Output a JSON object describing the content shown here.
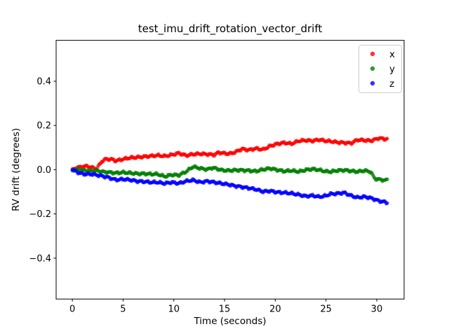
{
  "figure": {
    "background": "#ffffff"
  },
  "chart_data": {
    "type": "scatter",
    "title": "test_imu_drift_rotation_vector_drift",
    "xlabel": "Time (seconds)",
    "ylabel": "RV drift (degrees)",
    "xlim": [
      -1.6,
      32.7
    ],
    "ylim": [
      -0.585,
      0.585
    ],
    "xticks": [
      0,
      5,
      10,
      15,
      20,
      25,
      30
    ],
    "yticks": [
      -0.4,
      -0.2,
      0.0,
      0.2,
      0.4
    ],
    "grid": false,
    "legend_position": "upper right",
    "marker": {
      "radius_px": 2.6,
      "opacity": 0.65,
      "step_seconds": 0.08,
      "noise_amplitude": 0.0035
    },
    "series": [
      {
        "name": "x",
        "color": "#ff0000",
        "points": [
          [
            0,
            0.0
          ],
          [
            0.4,
            0.009
          ],
          [
            0.9,
            0.013
          ],
          [
            1.4,
            0.016
          ],
          [
            1.9,
            0.01
          ],
          [
            2.4,
            0.004
          ],
          [
            2.9,
            0.038
          ],
          [
            3.3,
            0.048
          ],
          [
            3.9,
            0.047
          ],
          [
            4.3,
            0.04
          ],
          [
            5,
            0.048
          ],
          [
            5.7,
            0.054
          ],
          [
            6.4,
            0.056
          ],
          [
            7.1,
            0.059
          ],
          [
            7.8,
            0.062
          ],
          [
            8.4,
            0.065
          ],
          [
            9.1,
            0.061
          ],
          [
            9.8,
            0.067
          ],
          [
            10.5,
            0.075
          ],
          [
            11.2,
            0.064
          ],
          [
            11.9,
            0.07
          ],
          [
            12.6,
            0.072
          ],
          [
            13.3,
            0.07
          ],
          [
            14,
            0.067
          ],
          [
            14.4,
            0.078
          ],
          [
            15,
            0.074
          ],
          [
            15.5,
            0.072
          ],
          [
            16.1,
            0.08
          ],
          [
            16.7,
            0.094
          ],
          [
            17.4,
            0.089
          ],
          [
            18.1,
            0.096
          ],
          [
            18.8,
            0.091
          ],
          [
            19.5,
            0.107
          ],
          [
            20.2,
            0.117
          ],
          [
            20.9,
            0.122
          ],
          [
            21.6,
            0.117
          ],
          [
            22.3,
            0.13
          ],
          [
            23,
            0.133
          ],
          [
            23.7,
            0.13
          ],
          [
            24.3,
            0.136
          ],
          [
            25,
            0.13
          ],
          [
            25.5,
            0.128
          ],
          [
            26.1,
            0.124
          ],
          [
            26.8,
            0.122
          ],
          [
            27.5,
            0.12
          ],
          [
            28.1,
            0.135
          ],
          [
            28.8,
            0.133
          ],
          [
            29.5,
            0.131
          ],
          [
            30.2,
            0.143
          ],
          [
            30.9,
            0.138
          ],
          [
            31.1,
            0.14
          ]
        ]
      },
      {
        "name": "y",
        "color": "#008000",
        "points": [
          [
            0,
            0.0
          ],
          [
            0.4,
            0.001
          ],
          [
            0.9,
            -0.001
          ],
          [
            1.4,
            -0.004
          ],
          [
            1.9,
            -0.006
          ],
          [
            2.4,
            -0.004
          ],
          [
            2.9,
            -0.009
          ],
          [
            3.6,
            -0.012
          ],
          [
            4.3,
            -0.015
          ],
          [
            5,
            -0.012
          ],
          [
            5.7,
            -0.015
          ],
          [
            6.4,
            -0.018
          ],
          [
            7.1,
            -0.018
          ],
          [
            7.8,
            -0.02
          ],
          [
            8.4,
            -0.02
          ],
          [
            9.1,
            -0.031
          ],
          [
            9.8,
            -0.023
          ],
          [
            10.5,
            -0.025
          ],
          [
            11.2,
            -0.009
          ],
          [
            11.9,
            0.014
          ],
          [
            12.6,
            0.006
          ],
          [
            13.3,
            0.001
          ],
          [
            13.8,
            0.009
          ],
          [
            14.2,
            0.005
          ],
          [
            14.7,
            -0.002
          ],
          [
            15.4,
            -0.004
          ],
          [
            16,
            -0.002
          ],
          [
            16.7,
            -0.002
          ],
          [
            17.4,
            -0.004
          ],
          [
            18.1,
            -0.007
          ],
          [
            18.8,
            0.001
          ],
          [
            19.5,
            0.006
          ],
          [
            20.2,
            -0.001
          ],
          [
            20.9,
            -0.007
          ],
          [
            21.6,
            -0.004
          ],
          [
            22.3,
            -0.009
          ],
          [
            23,
            -0.001
          ],
          [
            23.7,
            0.003
          ],
          [
            24.3,
            -0.001
          ],
          [
            25,
            -0.008
          ],
          [
            25.5,
            -0.009
          ],
          [
            26.1,
            -0.004
          ],
          [
            26.8,
            -0.002
          ],
          [
            27.5,
            -0.006
          ],
          [
            28.1,
            -0.009
          ],
          [
            28.8,
            -0.004
          ],
          [
            29.4,
            -0.009
          ],
          [
            29.8,
            -0.04
          ],
          [
            30.2,
            -0.044
          ],
          [
            30.9,
            -0.048
          ],
          [
            31.1,
            -0.046
          ]
        ]
      },
      {
        "name": "z",
        "color": "#0000ff",
        "points": [
          [
            0,
            0.0
          ],
          [
            0.2,
            -0.004
          ],
          [
            0.7,
            -0.015
          ],
          [
            1.2,
            -0.02
          ],
          [
            1.9,
            -0.02
          ],
          [
            2.4,
            -0.024
          ],
          [
            2.9,
            -0.028
          ],
          [
            3.6,
            -0.036
          ],
          [
            4.3,
            -0.046
          ],
          [
            5,
            -0.043
          ],
          [
            5.7,
            -0.046
          ],
          [
            6.4,
            -0.052
          ],
          [
            7.1,
            -0.054
          ],
          [
            7.8,
            -0.057
          ],
          [
            8.4,
            -0.057
          ],
          [
            9.1,
            -0.062
          ],
          [
            9.8,
            -0.057
          ],
          [
            10.5,
            -0.062
          ],
          [
            11.2,
            -0.052
          ],
          [
            11.9,
            -0.047
          ],
          [
            12.6,
            -0.057
          ],
          [
            13.3,
            -0.052
          ],
          [
            14,
            -0.057
          ],
          [
            14.7,
            -0.062
          ],
          [
            15.4,
            -0.067
          ],
          [
            16,
            -0.073
          ],
          [
            16.7,
            -0.078
          ],
          [
            17.4,
            -0.083
          ],
          [
            18.1,
            -0.089
          ],
          [
            18.8,
            -0.099
          ],
          [
            19.5,
            -0.096
          ],
          [
            20.2,
            -0.102
          ],
          [
            20.9,
            -0.104
          ],
          [
            21.6,
            -0.107
          ],
          [
            22.3,
            -0.113
          ],
          [
            23,
            -0.12
          ],
          [
            23.7,
            -0.117
          ],
          [
            24.3,
            -0.123
          ],
          [
            25,
            -0.118
          ],
          [
            25.4,
            -0.11
          ],
          [
            26.1,
            -0.108
          ],
          [
            26.8,
            -0.104
          ],
          [
            27.5,
            -0.118
          ],
          [
            28.1,
            -0.126
          ],
          [
            28.8,
            -0.122
          ],
          [
            29.5,
            -0.129
          ],
          [
            30.2,
            -0.141
          ],
          [
            30.9,
            -0.147
          ],
          [
            31.1,
            -0.152
          ]
        ]
      }
    ]
  }
}
